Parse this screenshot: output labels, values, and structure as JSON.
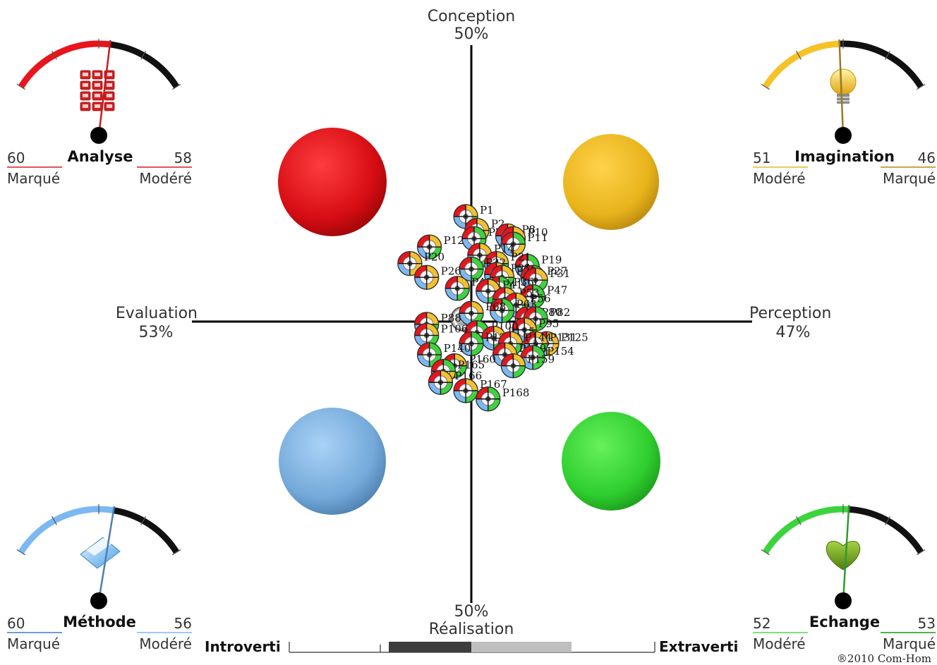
{
  "axes": {
    "top_label": "Conception",
    "top_pct": "50%",
    "bottom_label": "Réalisation",
    "bottom_pct": "50%",
    "left_label": "Evaluation",
    "left_pct": "53%",
    "right_label": "Perception",
    "right_pct": "47%"
  },
  "gauges": [
    {
      "id": "analyse",
      "name": "Analyse",
      "left_value": "60",
      "left_sub": "Marqué",
      "right_value": "58",
      "right_sub": "Modéré",
      "color": "#e8151c",
      "icon": "keypad-icon",
      "needle_fraction": 0.56
    },
    {
      "id": "imagination",
      "name": "Imagination",
      "left_value": "51",
      "left_sub": "Modéré",
      "right_value": "46",
      "right_sub": "Marqué",
      "color": "#f5c227",
      "icon": "lightbulb-icon",
      "needle_fraction": 0.48
    },
    {
      "id": "methode",
      "name": "Méthode",
      "left_value": "60",
      "left_sub": "Marqué",
      "right_value": "56",
      "right_sub": "Modéré",
      "color": "#7cb8f2",
      "icon": "folder-icon",
      "needle_fraction": 0.58
    },
    {
      "id": "echange",
      "name": "Echange",
      "left_value": "52",
      "left_sub": "Modéré",
      "right_value": "53",
      "right_sub": "Marqué",
      "color": "#3cd43c",
      "icon": "heart-icon",
      "needle_fraction": 0.53
    }
  ],
  "quadrant_colors": {
    "analyse": "#e8151c",
    "imagination": "#f2c12e",
    "methode": "#7cb8f2",
    "echange": "#3cd43c"
  },
  "scale": {
    "left_label": "Introverti",
    "right_label": "Extraverti",
    "dark_fraction": 0.47,
    "light_fraction": 0.53
  },
  "copyright": "®2010 Com-Hom",
  "chart_data": {
    "type": "scatter",
    "title": "",
    "xlabel": "Evaluation — Perception",
    "ylabel": "Conception — Réalisation",
    "xlim": [
      -1,
      1
    ],
    "ylim": [
      -1,
      1
    ],
    "grid": false,
    "center_marker": [
      -0.03,
      0.01
    ],
    "points": [
      {
        "label": "P1",
        "x": -0.02,
        "y": 0.38
      },
      {
        "label": "P2",
        "x": 0.02,
        "y": 0.33
      },
      {
        "label": "P7",
        "x": 0.01,
        "y": 0.3
      },
      {
        "label": "P8",
        "x": 0.13,
        "y": 0.31
      },
      {
        "label": "P10",
        "x": 0.15,
        "y": 0.3
      },
      {
        "label": "P11",
        "x": 0.15,
        "y": 0.28
      },
      {
        "label": "P12",
        "x": -0.15,
        "y": 0.27
      },
      {
        "label": "P14",
        "x": 0.03,
        "y": 0.24
      },
      {
        "label": "P19",
        "x": 0.2,
        "y": 0.2
      },
      {
        "label": "P20",
        "x": -0.22,
        "y": 0.21
      },
      {
        "label": "P21",
        "x": 0.09,
        "y": 0.21
      },
      {
        "label": "P22",
        "x": 0.0,
        "y": 0.19
      },
      {
        "label": "P24",
        "x": 0.09,
        "y": 0.17
      },
      {
        "label": "P26",
        "x": -0.16,
        "y": 0.16
      },
      {
        "label": "P27",
        "x": 0.22,
        "y": 0.16
      },
      {
        "label": "P28",
        "x": 0.11,
        "y": 0.16
      },
      {
        "label": "P31",
        "x": 0.23,
        "y": 0.15
      },
      {
        "label": "P36",
        "x": 0.1,
        "y": 0.12
      },
      {
        "label": "P40",
        "x": -0.05,
        "y": 0.12
      },
      {
        "label": "P41",
        "x": 0.06,
        "y": 0.11
      },
      {
        "label": "P47",
        "x": 0.22,
        "y": 0.09
      },
      {
        "label": "P53",
        "x": 0.12,
        "y": 0.08
      },
      {
        "label": "P56",
        "x": 0.16,
        "y": 0.06
      },
      {
        "label": "P63",
        "x": 0.11,
        "y": 0.04
      },
      {
        "label": "P68",
        "x": 0.0,
        "y": 0.03
      },
      {
        "label": "P80",
        "x": 0.2,
        "y": 0.01
      },
      {
        "label": "P82",
        "x": 0.23,
        "y": 0.01
      },
      {
        "label": "P88",
        "x": -0.16,
        "y": -0.01
      },
      {
        "label": "P95",
        "x": 0.19,
        "y": -0.03
      },
      {
        "label": "P100",
        "x": 0.02,
        "y": -0.04
      },
      {
        "label": "P106",
        "x": -0.16,
        "y": -0.05
      },
      {
        "label": "P115",
        "x": 0.08,
        "y": -0.06
      },
      {
        "label": "P120",
        "x": 0.0,
        "y": -0.08
      },
      {
        "label": "P125",
        "x": 0.27,
        "y": -0.08
      },
      {
        "label": "P131",
        "x": 0.23,
        "y": -0.08
      },
      {
        "label": "P140",
        "x": -0.15,
        "y": -0.12
      },
      {
        "label": "P144",
        "x": 0.14,
        "y": -0.08
      },
      {
        "label": "P149",
        "x": 0.12,
        "y": -0.12
      },
      {
        "label": "P154",
        "x": 0.22,
        "y": -0.13
      },
      {
        "label": "P159",
        "x": 0.15,
        "y": -0.16
      },
      {
        "label": "P160",
        "x": -0.06,
        "y": -0.16
      },
      {
        "label": "P165",
        "x": -0.1,
        "y": -0.18
      },
      {
        "label": "P166",
        "x": -0.11,
        "y": -0.22
      },
      {
        "label": "P167",
        "x": -0.02,
        "y": -0.25
      },
      {
        "label": "P168",
        "x": 0.06,
        "y": -0.28
      }
    ]
  }
}
